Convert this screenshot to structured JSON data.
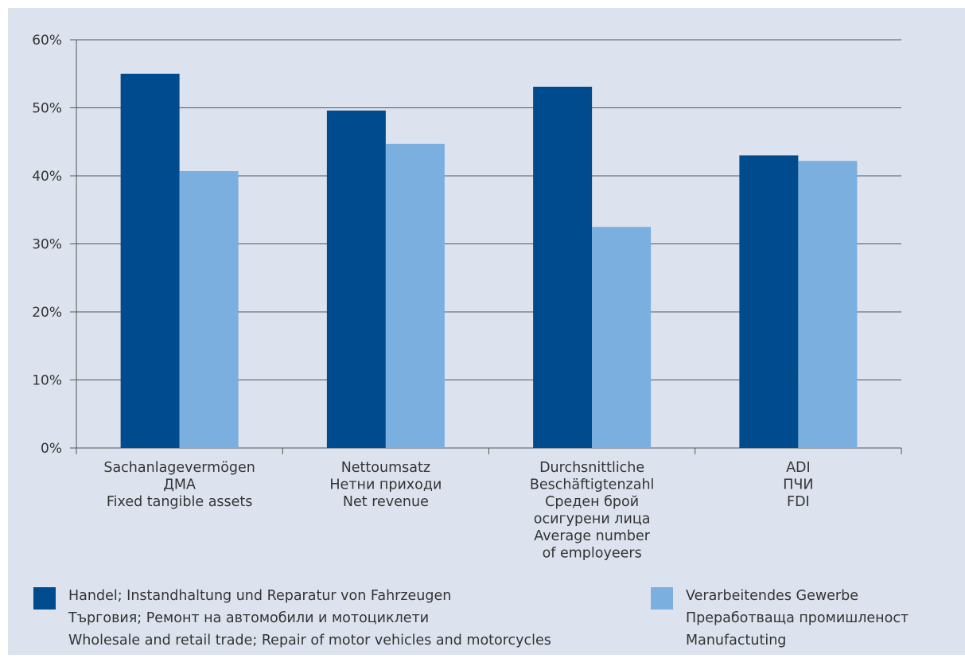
{
  "chart_data": {
    "type": "bar",
    "y_ticks": [
      "0%",
      "10%",
      "20%",
      "30%",
      "40%",
      "50%",
      "60%"
    ],
    "ylim": [
      0,
      60
    ],
    "grid": true,
    "legend_position": "bottom",
    "categories": [
      [
        "Sachanlagevermögen",
        "ДМА",
        "Fixed tangible assets"
      ],
      [
        "Nettoumsatz",
        "Нетни приходи",
        "Net revenue"
      ],
      [
        "Durchsnittliche",
        "Beschäftigtenzahl",
        "Среден брой",
        "осигурени лица",
        "Average number",
        "of employeers"
      ],
      [
        "ADI",
        "ПЧИ",
        "FDI"
      ]
    ],
    "series": [
      {
        "name": [
          "Handel; Instandhaltung und Reparatur von Fahrzeugen",
          "Търговия; Ремонт на автомобили и мотоциклети",
          "Wholesale and retail trade; Repair of motor vehicles and motorcycles"
        ],
        "color": "#004b8d",
        "values": [
          55,
          49.6,
          53.1,
          43
        ]
      },
      {
        "name": [
          "Verarbeitendes Gewerbe",
          "Преработваща промишленост",
          "Manufactuting"
        ],
        "color": "#7aafdf",
        "values": [
          40.7,
          44.7,
          32.5,
          42.2
        ]
      }
    ]
  }
}
